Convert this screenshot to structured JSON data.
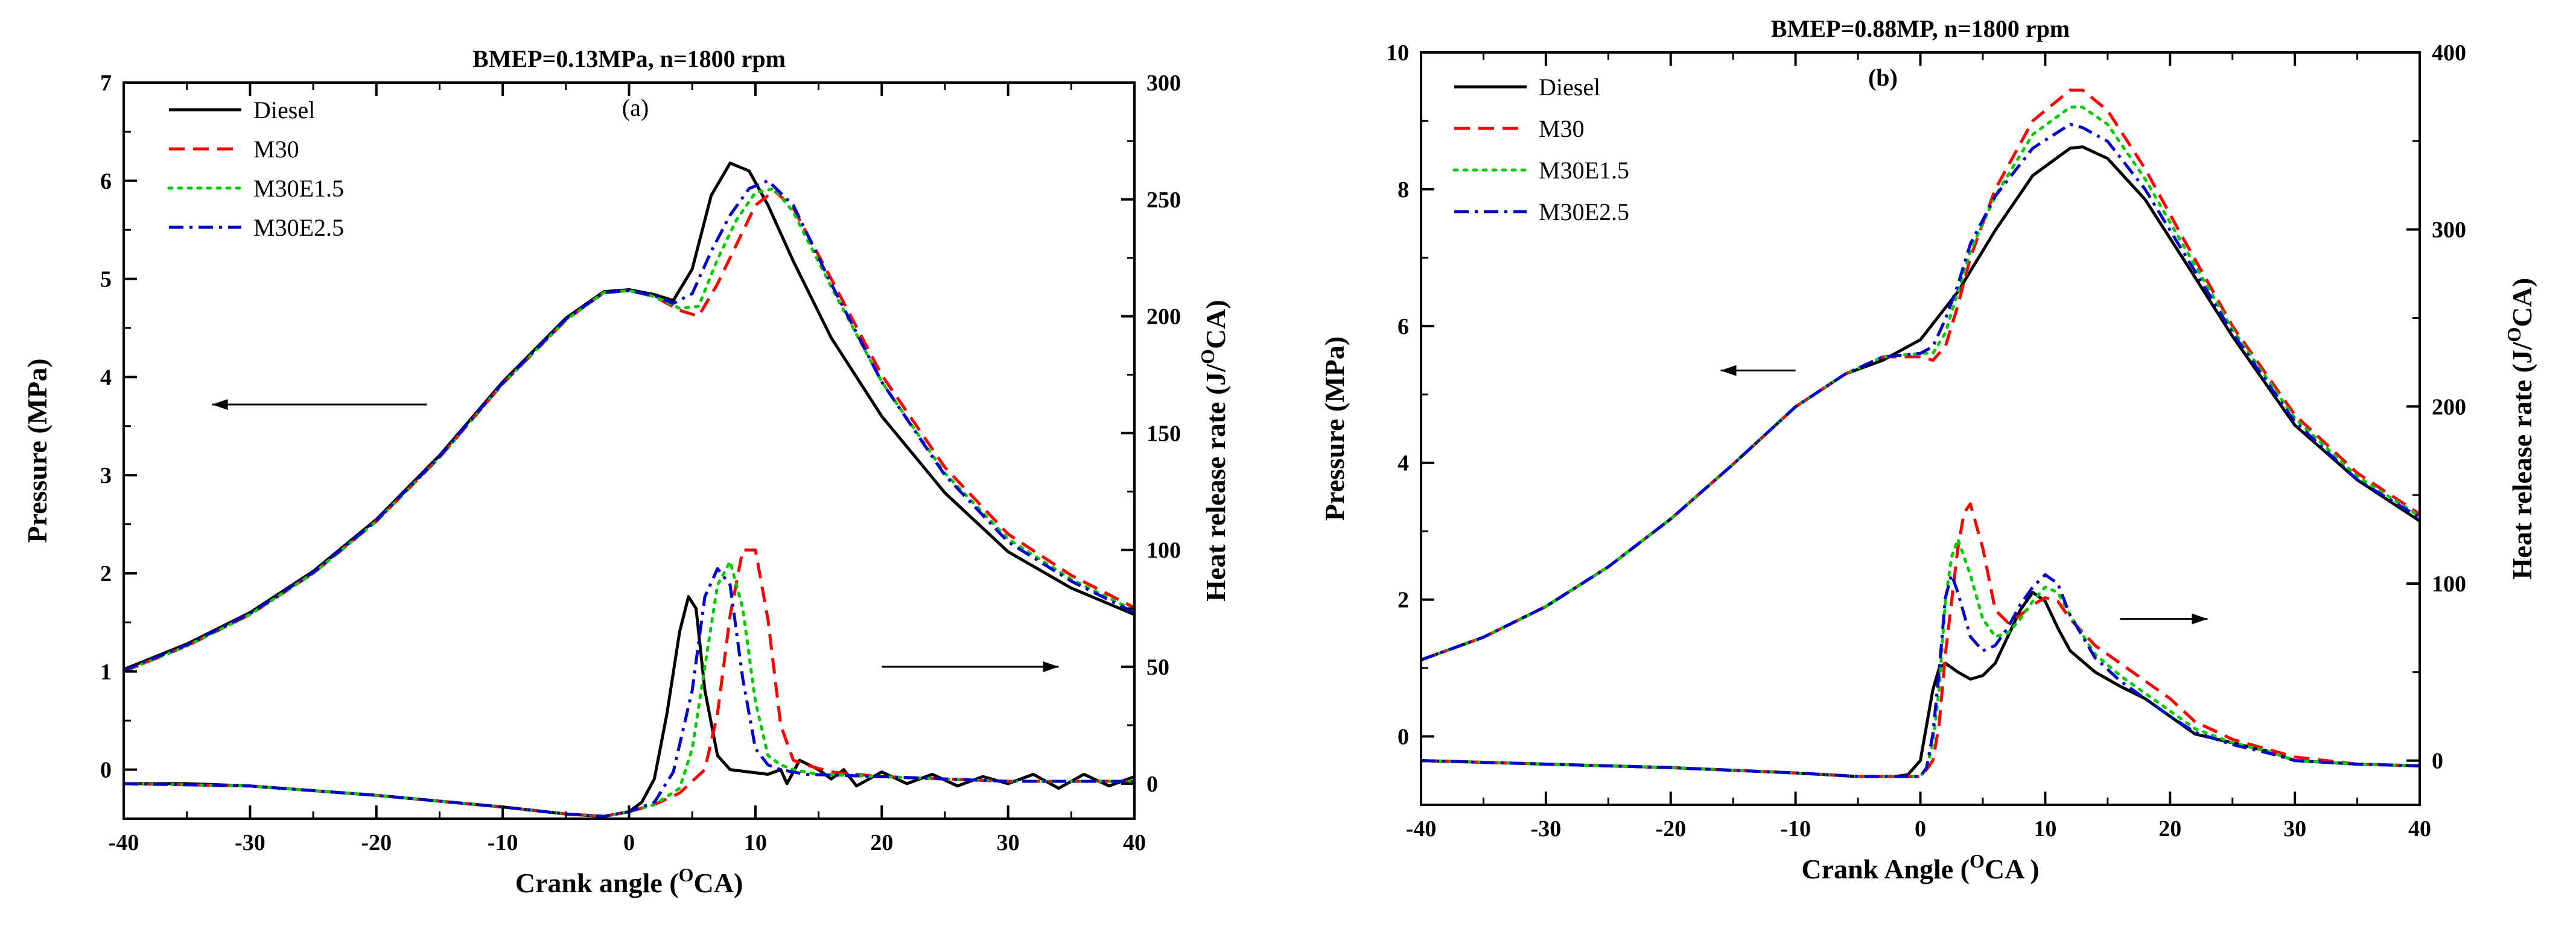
{
  "chart_data": [
    {
      "type": "line",
      "id": "a",
      "title": "BMEP=0.13MPa, n=1800 rpm",
      "panel_label": "(a)",
      "xlabel": "Crank angle (",
      "xlabel_sup": "O",
      "xlabel_tail": "CA)",
      "ylabel": "Pressure (MPa)",
      "y2label": "Heat release rate (J/",
      "y2label_sup": "O",
      "y2label_tail": "CA)",
      "xlim": [
        -40,
        40
      ],
      "ylim": [
        -0.5,
        7
      ],
      "y2lim": [
        -15,
        300
      ],
      "xticks": [
        -40,
        -30,
        -20,
        -10,
        0,
        10,
        20,
        30,
        40
      ],
      "yticks": [
        0,
        1,
        2,
        3,
        4,
        5,
        6,
        7
      ],
      "y2ticks": [
        0,
        50,
        100,
        150,
        200,
        250,
        300
      ],
      "annotations": [
        {
          "kind": "arrow",
          "points_to": "left-axis",
          "from": [
            -16,
            3.72
          ],
          "to": [
            -33,
            3.72
          ]
        },
        {
          "kind": "arrow",
          "points_to": "right-axis",
          "from": [
            20,
            50
          ],
          "to": [
            34,
            50
          ]
        }
      ],
      "series": [
        {
          "name": "Diesel",
          "color": "#000000",
          "dash": "solid",
          "axis": "left",
          "x": [
            -40,
            -35,
            -30,
            -25,
            -20,
            -15,
            -10,
            -5,
            -2,
            0,
            2,
            3.5,
            5,
            6.5,
            8,
            9.5,
            11,
            13,
            16,
            20,
            25,
            30,
            35,
            40
          ],
          "y": [
            1.02,
            1.28,
            1.6,
            2.02,
            2.55,
            3.2,
            3.95,
            4.6,
            4.87,
            4.89,
            4.84,
            4.78,
            5.1,
            5.85,
            6.18,
            6.1,
            5.75,
            5.18,
            4.4,
            3.6,
            2.82,
            2.22,
            1.85,
            1.58
          ]
        },
        {
          "name": "M30",
          "color": "#ff0000",
          "dash": "dash",
          "axis": "left",
          "x": [
            -40,
            -35,
            -30,
            -25,
            -20,
            -15,
            -10,
            -5,
            -2,
            0,
            2,
            4,
            5.5,
            7,
            8.5,
            10,
            11.5,
            13,
            16,
            20,
            25,
            30,
            35,
            40
          ],
          "y": [
            1.0,
            1.26,
            1.58,
            2.0,
            2.53,
            3.18,
            3.93,
            4.58,
            4.86,
            4.88,
            4.82,
            4.68,
            4.62,
            4.95,
            5.35,
            5.75,
            5.9,
            5.72,
            5.0,
            4.02,
            3.08,
            2.4,
            1.98,
            1.65
          ]
        },
        {
          "name": "M30E1.5",
          "color": "#00cc00",
          "dash": "dot",
          "axis": "left",
          "x": [
            -40,
            -35,
            -30,
            -25,
            -20,
            -15,
            -10,
            -5,
            -2,
            0,
            2,
            4,
            5.5,
            7,
            8.5,
            10,
            11.5,
            13,
            16,
            20,
            25,
            30,
            35,
            40
          ],
          "y": [
            1.0,
            1.26,
            1.58,
            2.0,
            2.53,
            3.18,
            3.93,
            4.58,
            4.86,
            4.88,
            4.82,
            4.7,
            4.72,
            5.2,
            5.6,
            5.88,
            5.92,
            5.68,
            4.92,
            3.95,
            3.02,
            2.35,
            1.94,
            1.62
          ]
        },
        {
          "name": "M30E2.5",
          "color": "#0000cc",
          "dash": "dashdot",
          "axis": "left",
          "x": [
            -40,
            -35,
            -30,
            -25,
            -20,
            -15,
            -10,
            -5,
            -2,
            0,
            2,
            3.5,
            5,
            6.5,
            8,
            9.5,
            11,
            13,
            16,
            20,
            25,
            30,
            35,
            40
          ],
          "y": [
            1.01,
            1.27,
            1.59,
            2.01,
            2.54,
            3.19,
            3.94,
            4.59,
            4.86,
            4.88,
            4.83,
            4.75,
            4.85,
            5.28,
            5.65,
            5.92,
            6.0,
            5.75,
            4.95,
            3.95,
            3.0,
            2.32,
            1.92,
            1.6
          ]
        },
        {
          "name": "Diesel",
          "color": "#000000",
          "dash": "solid",
          "axis": "right",
          "x": [
            -40,
            -35,
            -30,
            -20,
            -10,
            -5,
            -2,
            0,
            1,
            2,
            3,
            4,
            4.7,
            5.3,
            6,
            7,
            8,
            9.5,
            11,
            12,
            12.5,
            13.5,
            15,
            16,
            17,
            18,
            20,
            22,
            24,
            26,
            28,
            30,
            32,
            34,
            36,
            38,
            40
          ],
          "y": [
            0,
            0,
            -1,
            -5,
            -10,
            -13,
            -14,
            -12,
            -8,
            2,
            30,
            65,
            80,
            75,
            40,
            12,
            6,
            5,
            4,
            6,
            0,
            10,
            6,
            2,
            6,
            -1,
            5,
            0,
            4,
            -1,
            3,
            0,
            4,
            -2,
            4,
            -1,
            3
          ]
        },
        {
          "name": "M30",
          "color": "#ff0000",
          "dash": "dash",
          "axis": "right",
          "x": [
            -40,
            -30,
            -20,
            -10,
            -5,
            -2,
            0,
            2,
            4,
            6,
            7,
            8,
            9,
            10,
            11,
            12,
            13,
            14,
            16,
            20,
            25,
            30,
            35,
            40
          ],
          "y": [
            0,
            -1,
            -5,
            -10,
            -13,
            -14,
            -12,
            -9,
            -4,
            6,
            30,
            72,
            100,
            100,
            70,
            25,
            10,
            8,
            5,
            3,
            2,
            1,
            1,
            1
          ]
        },
        {
          "name": "M30E1.5",
          "color": "#00cc00",
          "dash": "dot",
          "axis": "right",
          "x": [
            -40,
            -30,
            -20,
            -10,
            -5,
            -2,
            0,
            2,
            4,
            5,
            6,
            7,
            8,
            9,
            10,
            11,
            12,
            13,
            15,
            20,
            25,
            30,
            35,
            40
          ],
          "y": [
            0,
            -1,
            -5,
            -10,
            -13,
            -14,
            -12,
            -9,
            -2,
            15,
            50,
            85,
            95,
            75,
            35,
            12,
            8,
            6,
            4,
            3,
            2,
            1,
            1,
            1
          ]
        },
        {
          "name": "M30E2.5",
          "color": "#0000cc",
          "dash": "dashdot",
          "axis": "right",
          "x": [
            -40,
            -30,
            -20,
            -10,
            -5,
            -2,
            0,
            2,
            3.5,
            5,
            6,
            7,
            8,
            9,
            10,
            11,
            12,
            14,
            20,
            25,
            30,
            35,
            40
          ],
          "y": [
            0,
            -1,
            -5,
            -10,
            -13,
            -14,
            -12,
            -8,
            5,
            40,
            80,
            92,
            85,
            45,
            15,
            8,
            6,
            4,
            3,
            2,
            1,
            1,
            1
          ]
        }
      ]
    },
    {
      "type": "line",
      "id": "b",
      "title": "BMEP=0.88MP, n=1800 rpm",
      "panel_label": "(b)",
      "xlabel": "Crank Angle (",
      "xlabel_sup": "O",
      "xlabel_tail": "CA )",
      "ylabel": "Pressure (MPa)",
      "y2label": "Heat release rate (J/",
      "y2label_sup": "O",
      "y2label_tail": "CA)",
      "xlim": [
        -40,
        40
      ],
      "ylim": [
        -1,
        10
      ],
      "y2lim": [
        -25,
        400
      ],
      "xticks": [
        -40,
        -30,
        -20,
        -10,
        0,
        10,
        20,
        30,
        40
      ],
      "yticks": [
        0,
        2,
        4,
        6,
        8,
        10
      ],
      "y2ticks": [
        0,
        100,
        200,
        300,
        400
      ],
      "annotations": [
        {
          "kind": "arrow",
          "points_to": "left-axis",
          "from": [
            -10,
            5.35
          ],
          "to": [
            -16,
            5.35
          ]
        },
        {
          "kind": "arrow",
          "points_to": "right-axis",
          "from": [
            16,
            80
          ],
          "to": [
            23,
            80
          ]
        }
      ],
      "series": [
        {
          "name": "Diesel",
          "color": "#000000",
          "dash": "solid",
          "axis": "left",
          "x": [
            -40,
            -35,
            -30,
            -25,
            -20,
            -15,
            -10,
            -6,
            -3,
            0,
            3,
            6,
            9,
            12,
            13,
            15,
            18,
            21,
            25,
            30,
            35,
            40
          ],
          "y": [
            1.12,
            1.45,
            1.9,
            2.48,
            3.18,
            3.98,
            4.82,
            5.3,
            5.5,
            5.8,
            6.5,
            7.4,
            8.2,
            8.6,
            8.62,
            8.45,
            7.85,
            7.0,
            5.85,
            4.55,
            3.75,
            3.15
          ]
        },
        {
          "name": "M30",
          "color": "#ff0000",
          "dash": "dash",
          "axis": "left",
          "x": [
            -40,
            -35,
            -30,
            -25,
            -20,
            -15,
            -10,
            -6,
            -3,
            0,
            1,
            2,
            3,
            4,
            6,
            9,
            12,
            13,
            15,
            18,
            21,
            25,
            30,
            35,
            40
          ],
          "y": [
            1.12,
            1.45,
            1.9,
            2.48,
            3.18,
            3.98,
            4.82,
            5.3,
            5.55,
            5.55,
            5.5,
            5.7,
            6.3,
            7.0,
            8.0,
            9.0,
            9.45,
            9.45,
            9.15,
            8.3,
            7.3,
            6.0,
            4.7,
            3.85,
            3.25
          ]
        },
        {
          "name": "M30E1.5",
          "color": "#00cc00",
          "dash": "dot",
          "axis": "left",
          "x": [
            -40,
            -35,
            -30,
            -25,
            -20,
            -15,
            -10,
            -6,
            -3,
            0,
            1,
            2,
            3,
            4,
            6,
            9,
            12,
            13,
            15,
            18,
            21,
            25,
            30,
            35,
            40
          ],
          "y": [
            1.12,
            1.45,
            1.9,
            2.48,
            3.18,
            3.98,
            4.82,
            5.3,
            5.55,
            5.6,
            5.6,
            5.9,
            6.5,
            7.1,
            7.9,
            8.8,
            9.2,
            9.2,
            8.95,
            8.15,
            7.2,
            5.95,
            4.65,
            3.8,
            3.22
          ]
        },
        {
          "name": "M30E2.5",
          "color": "#0000cc",
          "dash": "dashdot",
          "axis": "left",
          "x": [
            -40,
            -35,
            -30,
            -25,
            -20,
            -15,
            -10,
            -6,
            -3,
            0,
            1,
            2,
            3,
            4,
            6,
            9,
            12,
            13,
            15,
            18,
            21,
            25,
            30,
            35,
            40
          ],
          "y": [
            1.12,
            1.45,
            1.9,
            2.48,
            3.18,
            3.98,
            4.82,
            5.3,
            5.55,
            5.6,
            5.7,
            6.1,
            6.6,
            7.2,
            7.9,
            8.6,
            8.95,
            8.9,
            8.7,
            8.0,
            7.1,
            5.9,
            4.6,
            3.75,
            3.2
          ]
        },
        {
          "name": "Diesel",
          "color": "#000000",
          "dash": "solid",
          "axis": "right",
          "x": [
            -40,
            -30,
            -20,
            -10,
            -5,
            -2,
            -1,
            0,
            0.5,
            1,
            1.5,
            2,
            3,
            4,
            5,
            6,
            7,
            8,
            9,
            10,
            11,
            12,
            14,
            16,
            18,
            20,
            22,
            25,
            28,
            30,
            35,
            40
          ],
          "y": [
            0,
            -2,
            -4,
            -7,
            -9,
            -9,
            -8,
            0,
            20,
            40,
            52,
            55,
            50,
            46,
            48,
            55,
            70,
            85,
            95,
            90,
            75,
            62,
            50,
            42,
            35,
            25,
            15,
            10,
            5,
            0,
            -2,
            -3
          ]
        },
        {
          "name": "M30",
          "color": "#ff0000",
          "dash": "dash",
          "axis": "right",
          "x": [
            -40,
            -30,
            -20,
            -10,
            -5,
            -2,
            0,
            0.5,
            1,
            1.5,
            2,
            3,
            3.5,
            4,
            5,
            6,
            7,
            8,
            9,
            10,
            11,
            12,
            14,
            16,
            18,
            20,
            22,
            25,
            28,
            30,
            35,
            40
          ],
          "y": [
            0,
            -2,
            -4,
            -7,
            -9,
            -9,
            -9,
            -5,
            0,
            20,
            60,
            120,
            140,
            145,
            120,
            85,
            78,
            82,
            88,
            92,
            90,
            80,
            65,
            55,
            45,
            35,
            22,
            12,
            6,
            2,
            -2,
            -3
          ]
        },
        {
          "name": "M30E1.5",
          "color": "#00cc00",
          "dash": "dot",
          "axis": "right",
          "x": [
            -40,
            -30,
            -20,
            -10,
            -5,
            -2,
            0,
            0.5,
            1,
            1.5,
            2,
            2.5,
            3,
            4,
            5,
            6,
            7,
            8,
            9,
            10,
            11,
            12,
            14,
            16,
            18,
            20,
            22,
            25,
            28,
            30,
            35,
            40
          ],
          "y": [
            0,
            -2,
            -4,
            -7,
            -9,
            -9,
            -9,
            -4,
            10,
            40,
            90,
            115,
            125,
            105,
            80,
            70,
            72,
            80,
            90,
            98,
            95,
            82,
            60,
            48,
            38,
            28,
            18,
            10,
            5,
            0,
            -2,
            -3
          ]
        },
        {
          "name": "M30E2.5",
          "color": "#0000cc",
          "dash": "dashdot",
          "axis": "right",
          "x": [
            -40,
            -30,
            -20,
            -10,
            -5,
            -2,
            0,
            0.5,
            1,
            1.5,
            2,
            2.5,
            3,
            4,
            5,
            6,
            7,
            8,
            9,
            10,
            11,
            12,
            14,
            16,
            18,
            20,
            22,
            25,
            28,
            30,
            35,
            40
          ],
          "y": [
            0,
            -2,
            -4,
            -7,
            -9,
            -9,
            -9,
            -4,
            15,
            50,
            92,
            105,
            95,
            70,
            62,
            65,
            75,
            88,
            98,
            105,
            100,
            82,
            58,
            45,
            35,
            25,
            16,
            9,
            4,
            0,
            -2,
            -3
          ]
        }
      ]
    }
  ]
}
